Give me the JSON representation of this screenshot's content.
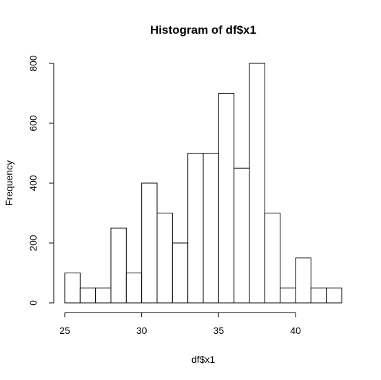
{
  "chart_data": {
    "type": "bar",
    "title": "Histogram of df$x1",
    "xlabel": "df$x1",
    "ylabel": "Frequency",
    "bin_edges": [
      25,
      26,
      27,
      28,
      29,
      30,
      31,
      32,
      33,
      34,
      35,
      36,
      37,
      38,
      39,
      40,
      41,
      42,
      43
    ],
    "values": [
      100,
      50,
      50,
      250,
      100,
      400,
      300,
      200,
      500,
      500,
      700,
      450,
      800,
      300,
      50,
      150,
      50,
      50
    ],
    "xlim": [
      25,
      43
    ],
    "ylim": [
      0,
      800
    ],
    "x_ticks": [
      "25",
      "30",
      "35",
      "40"
    ],
    "y_ticks": [
      "0",
      "200",
      "400",
      "600",
      "800"
    ],
    "grid": false,
    "colors": {
      "bar_fill": "#ffffff",
      "bar_stroke": "#000000",
      "axis": "#000000",
      "background": "#ffffff"
    }
  }
}
